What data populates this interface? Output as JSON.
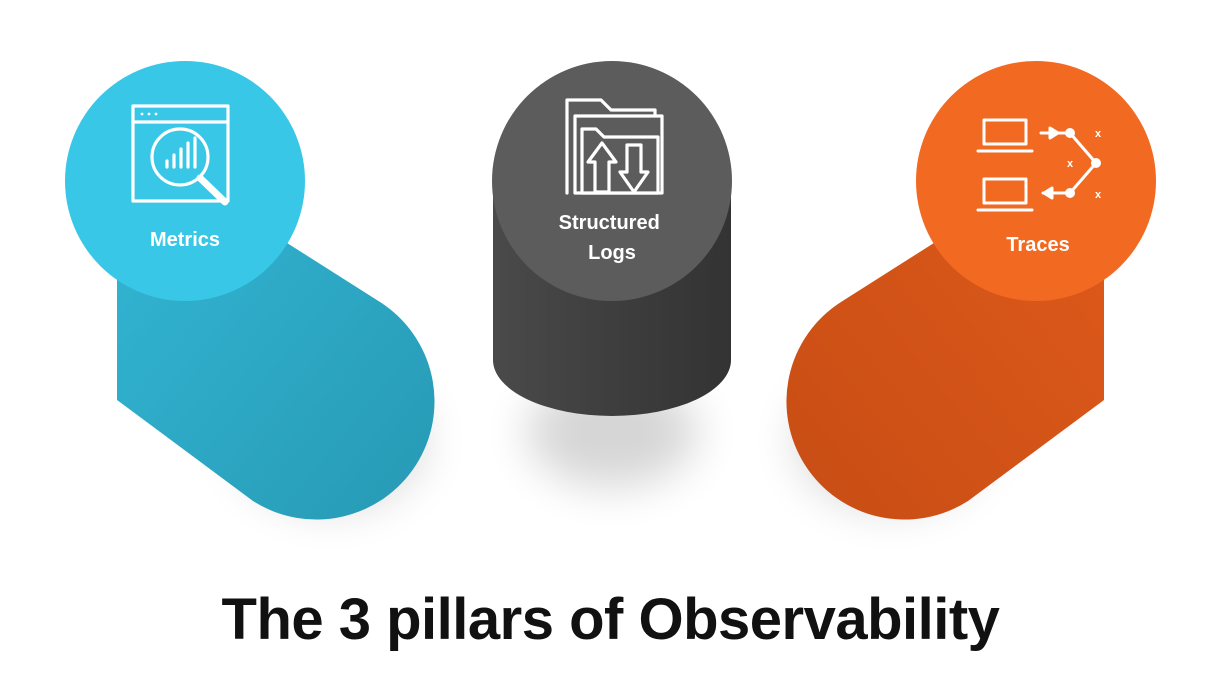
{
  "title": "The 3 pillars of Observability",
  "pillars": [
    {
      "id": "metrics",
      "label_lines": [
        "Metrics"
      ],
      "icon": "magnifier-chart-icon",
      "top_color": "#38c7e6",
      "body_color": "#2aa6c2"
    },
    {
      "id": "logs",
      "label_lines": [
        "Structured",
        "Logs"
      ],
      "icon": "folder-updown-icon",
      "top_color": "#5c5c5c",
      "body_color": "#3f3f3f"
    },
    {
      "id": "traces",
      "label_lines": [
        "Traces"
      ],
      "icon": "network-trace-icon",
      "top_color": "#f26a22",
      "body_color": "#d35318"
    }
  ],
  "traces_icon_marks": [
    "x",
    "x",
    "x"
  ]
}
